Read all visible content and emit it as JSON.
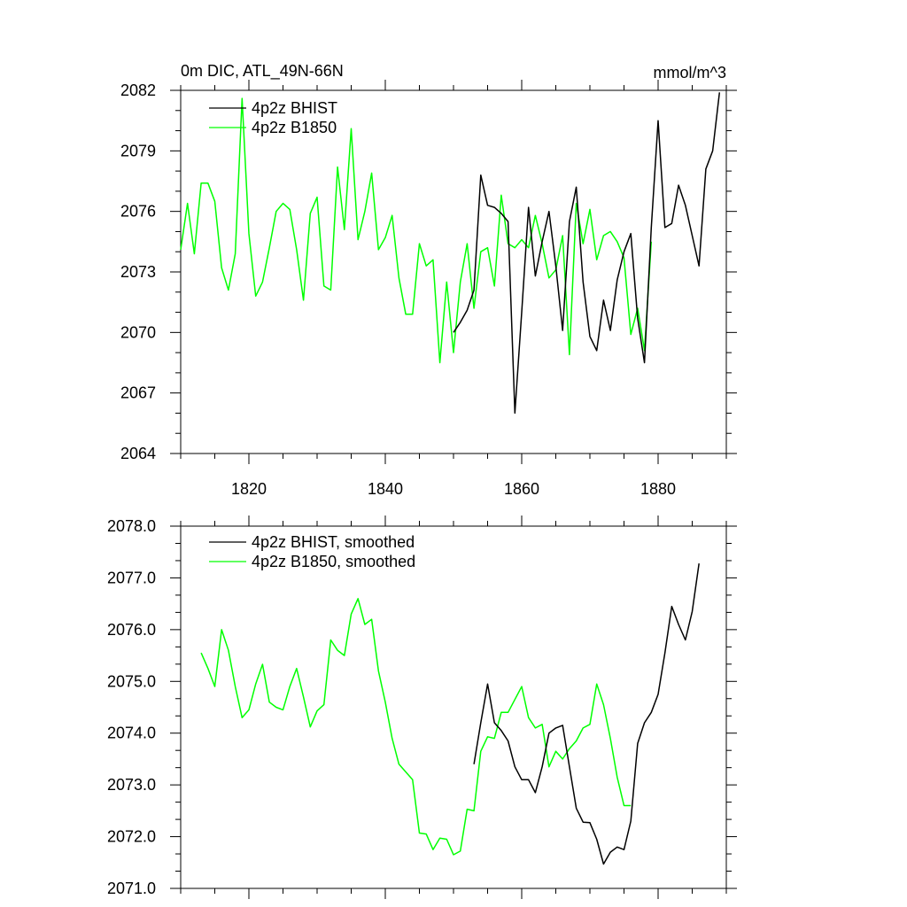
{
  "colors": {
    "black_series": "#000000",
    "green_series": "#00ff00"
  },
  "chart_data": [
    {
      "type": "line",
      "title": "0m DIC, ATL_49N-66N",
      "units": "mmol/m^3",
      "xlim": [
        1810,
        1890
      ],
      "ylim": [
        2064,
        2082
      ],
      "xticks": [
        1820,
        1840,
        1860,
        1880
      ],
      "xtick_labels": [
        "1820",
        "1840",
        "1860",
        "1880"
      ],
      "yticks": [
        2064,
        2067,
        2070,
        2073,
        2076,
        2079,
        2082
      ],
      "ytick_labels": [
        "2064",
        "2067",
        "2070",
        "2073",
        "2076",
        "2079",
        "2082"
      ],
      "legend_position": "top-left",
      "series": [
        {
          "name": "4p2z BHIST",
          "color": "#000000",
          "x": [
            1850,
            1851,
            1852,
            1853,
            1854,
            1855,
            1856,
            1857,
            1858,
            1859,
            1860,
            1861,
            1862,
            1863,
            1864,
            1865,
            1866,
            1867,
            1868,
            1869,
            1870,
            1871,
            1872,
            1873,
            1874,
            1875,
            1876,
            1877,
            1878,
            1879,
            1880,
            1881,
            1882,
            1883,
            1884,
            1885,
            1886,
            1887,
            1888,
            1889
          ],
          "values": [
            2070.0,
            2070.5,
            2071.1,
            2072.1,
            2077.8,
            2076.3,
            2076.2,
            2075.9,
            2075.5,
            2066.0,
            2071.0,
            2076.2,
            2072.8,
            2074.5,
            2076.0,
            2073.3,
            2070.1,
            2075.5,
            2077.2,
            2072.5,
            2069.8,
            2069.1,
            2071.6,
            2070.1,
            2072.6,
            2074.0,
            2074.9,
            2070.7,
            2068.5,
            2075.2,
            2080.5,
            2075.2,
            2075.4,
            2077.3,
            2076.3,
            2074.8,
            2073.3,
            2078.1,
            2079.0,
            2081.9
          ]
        },
        {
          "name": "4p2z B1850",
          "color": "#00ff00",
          "x": [
            1810,
            1811,
            1812,
            1813,
            1814,
            1815,
            1816,
            1817,
            1818,
            1819,
            1820,
            1821,
            1822,
            1823,
            1824,
            1825,
            1826,
            1827,
            1828,
            1829,
            1830,
            1831,
            1832,
            1833,
            1834,
            1835,
            1836,
            1837,
            1838,
            1839,
            1840,
            1841,
            1842,
            1843,
            1844,
            1845,
            1846,
            1847,
            1848,
            1849,
            1850,
            1851,
            1852,
            1853,
            1854,
            1855,
            1856,
            1857,
            1858,
            1859,
            1860,
            1861,
            1862,
            1863,
            1864,
            1865,
            1866,
            1867,
            1868,
            1869,
            1870,
            1871,
            1872,
            1873,
            1874,
            1875,
            1876,
            1877,
            1878,
            1879
          ],
          "values": [
            2074.1,
            2076.4,
            2073.9,
            2077.4,
            2077.4,
            2076.5,
            2073.2,
            2072.1,
            2073.9,
            2081.6,
            2074.9,
            2071.8,
            2072.5,
            2074.2,
            2076.0,
            2076.4,
            2076.1,
            2074.1,
            2071.6,
            2075.9,
            2076.7,
            2072.3,
            2072.1,
            2078.2,
            2075.1,
            2080.1,
            2074.6,
            2076.0,
            2077.9,
            2074.1,
            2074.7,
            2075.8,
            2072.7,
            2070.9,
            2070.9,
            2074.4,
            2073.3,
            2073.6,
            2068.5,
            2072.5,
            2069.0,
            2072.5,
            2074.4,
            2071.2,
            2074.0,
            2074.2,
            2072.3,
            2076.8,
            2074.4,
            2074.2,
            2074.6,
            2074.2,
            2075.8,
            2074.4,
            2072.7,
            2073.1,
            2074.8,
            2068.9,
            2076.4,
            2074.4,
            2076.1,
            2073.6,
            2074.8,
            2075.0,
            2074.5,
            2073.7,
            2069.9,
            2071.2,
            2069.1,
            2074.5
          ]
        }
      ]
    },
    {
      "type": "line",
      "title": "",
      "xlim": [
        1810,
        1890
      ],
      "ylim": [
        2071.0,
        2078.0
      ],
      "xticks": [
        1820,
        1840,
        1860,
        1880
      ],
      "yticks": [
        2071.0,
        2072.0,
        2073.0,
        2074.0,
        2075.0,
        2076.0,
        2077.0,
        2078.0
      ],
      "ytick_labels": [
        "2071.0",
        "2072.0",
        "2073.0",
        "2074.0",
        "2075.0",
        "2076.0",
        "2077.0",
        "2078.0"
      ],
      "legend_position": "top-left",
      "series": [
        {
          "name": "4p2z BHIST, smoothed",
          "color": "#000000",
          "x": [
            1853,
            1854,
            1855,
            1856,
            1857,
            1858,
            1859,
            1860,
            1861,
            1862,
            1863,
            1864,
            1865,
            1866,
            1867,
            1868,
            1869,
            1870,
            1871,
            1872,
            1873,
            1874,
            1875,
            1876,
            1877,
            1878,
            1879,
            1880,
            1881,
            1882,
            1883,
            1884,
            1885,
            1886
          ],
          "values": [
            2073.4,
            2074.2,
            2074.95,
            2074.2,
            2074.05,
            2073.85,
            2073.35,
            2073.1,
            2073.1,
            2072.85,
            2073.35,
            2074.0,
            2074.1,
            2074.15,
            2073.35,
            2072.55,
            2072.28,
            2072.27,
            2071.95,
            2071.47,
            2071.7,
            2071.8,
            2071.75,
            2072.3,
            2073.8,
            2074.2,
            2074.4,
            2074.75,
            2075.55,
            2076.45,
            2076.1,
            2075.8,
            2076.35,
            2077.28
          ]
        },
        {
          "name": "4p2z B1850, smoothed",
          "color": "#00ff00",
          "x": [
            1813,
            1814,
            1815,
            1816,
            1817,
            1818,
            1819,
            1820,
            1821,
            1822,
            1823,
            1824,
            1825,
            1826,
            1827,
            1828,
            1829,
            1830,
            1831,
            1832,
            1833,
            1834,
            1835,
            1836,
            1837,
            1838,
            1839,
            1840,
            1841,
            1842,
            1843,
            1844,
            1845,
            1846,
            1847,
            1848,
            1849,
            1850,
            1851,
            1852,
            1853,
            1854,
            1855,
            1856,
            1857,
            1858,
            1859,
            1860,
            1861,
            1862,
            1863,
            1864,
            1865,
            1866,
            1867,
            1868,
            1869,
            1870,
            1871,
            1872,
            1873,
            1874,
            1875,
            1876
          ],
          "values": [
            2075.55,
            2075.25,
            2074.9,
            2076.0,
            2075.6,
            2074.9,
            2074.3,
            2074.45,
            2074.95,
            2075.33,
            2074.6,
            2074.5,
            2074.45,
            2074.9,
            2075.25,
            2074.7,
            2074.12,
            2074.43,
            2074.55,
            2075.8,
            2075.6,
            2075.5,
            2076.3,
            2076.6,
            2076.1,
            2076.2,
            2075.2,
            2074.6,
            2073.9,
            2073.4,
            2073.25,
            2073.1,
            2072.07,
            2072.05,
            2071.75,
            2071.97,
            2071.95,
            2071.65,
            2071.72,
            2072.53,
            2072.5,
            2073.65,
            2073.93,
            2073.9,
            2074.4,
            2074.4,
            2074.65,
            2074.9,
            2074.3,
            2074.1,
            2074.17,
            2073.35,
            2073.65,
            2073.5,
            2073.7,
            2073.85,
            2074.1,
            2074.17,
            2074.95,
            2074.55,
            2073.9,
            2073.15,
            2072.6,
            2072.6
          ]
        }
      ]
    }
  ]
}
